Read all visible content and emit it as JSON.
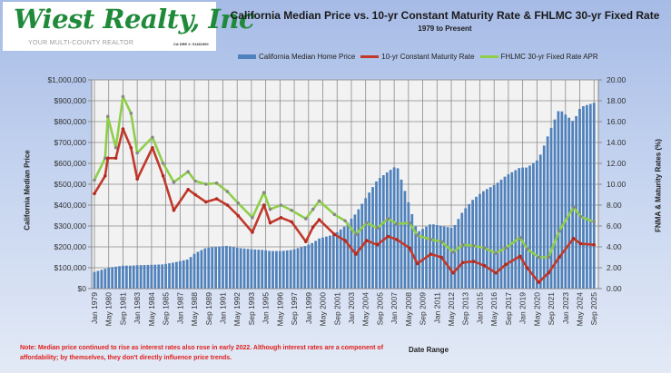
{
  "logo": {
    "name": "Wiest Realty, Inc",
    "tagline": "YOUR MULTI-COUNTY REALTOR",
    "license": "CA DRE #: 01181900"
  },
  "chart_data": {
    "type": "bar+line",
    "title": "California Median Price vs. 10-yr Constant Maturity Rate & FHLMC 30-yr Fixed Rate",
    "subtitle": "1979 to Present",
    "xlabel": "Date Range",
    "ylabel_left": "California Median Price",
    "ylabel_right": "FNMA & Maturity Rates (%)",
    "ylim_left": [
      0,
      1000000
    ],
    "ylim_right": [
      0,
      20
    ],
    "yticks_left": [
      "$0",
      "$100,000",
      "$200,000",
      "$300,000",
      "$400,000",
      "$500,000",
      "$600,000",
      "$700,000",
      "$800,000",
      "$900,000",
      "$1,000,000"
    ],
    "yticks_right": [
      "0.00",
      "2.00",
      "4.00",
      "6.00",
      "8.00",
      "10.00",
      "12.00",
      "14.00",
      "16.00",
      "18.00",
      "20.00"
    ],
    "xticks": [
      "Jan 1979",
      "May 1980",
      "Sep 1981",
      "Jan 1983",
      "May 1984",
      "Sep 1985",
      "Jan 1987",
      "May 1988",
      "Sep 1989",
      "Jan 1991",
      "May 1992",
      "Sep 1993",
      "Jan 1995",
      "May 1996",
      "Sep 1997",
      "Jan 1999",
      "May 2000",
      "Sep 2001",
      "Jan 2003",
      "May 2004",
      "Sep 2005",
      "Jan 2007",
      "May 2008",
      "Sep 2009",
      "Jan 2011",
      "May 2012",
      "Sep 2013",
      "Jan 2015",
      "May 2016",
      "Sep 2017",
      "Jan 2019",
      "May 2020",
      "Sep 2021",
      "Jan 2023",
      "May 2024",
      "Sep 2025"
    ],
    "grid": true,
    "legend_position": "top",
    "series": [
      {
        "name": "California Median Home Price",
        "type": "bar",
        "color": "#4f81bd"
      },
      {
        "name": "10-yr Constant Maturity Rate",
        "type": "line",
        "color": "#c0392b"
      },
      {
        "name": "FHLMC 30-yr Fixed Rate APR",
        "type": "line",
        "color": "#8fce4a"
      }
    ],
    "x": [
      "1979-01",
      "1980-01",
      "1980-04",
      "1981-01",
      "1981-09",
      "1982-06",
      "1983-01",
      "1984-06",
      "1985-06",
      "1986-06",
      "1987-10",
      "1988-06",
      "1989-06",
      "1990-06",
      "1991-06",
      "1992-06",
      "1993-10",
      "1994-11",
      "1995-06",
      "1996-06",
      "1997-06",
      "1998-10",
      "1999-06",
      "2000-01",
      "2001-06",
      "2002-06",
      "2003-06",
      "2004-06",
      "2005-06",
      "2006-06",
      "2007-04",
      "2008-06",
      "2009-03",
      "2010-06",
      "2011-06",
      "2012-07",
      "2013-06",
      "2014-06",
      "2015-06",
      "2016-07",
      "2017-06",
      "2018-10",
      "2019-06",
      "2020-07",
      "2021-06",
      "2022-06",
      "2023-10",
      "2024-06",
      "2025-09"
    ],
    "price": [
      80000,
      95000,
      100000,
      105000,
      110000,
      110000,
      112000,
      114000,
      116000,
      125000,
      140000,
      170000,
      195000,
      200000,
      205000,
      195000,
      188000,
      185000,
      180000,
      180000,
      185000,
      205000,
      220000,
      240000,
      260000,
      300000,
      360000,
      440000,
      520000,
      560000,
      590000,
      400000,
      270000,
      310000,
      300000,
      290000,
      370000,
      430000,
      470000,
      500000,
      540000,
      580000,
      580000,
      620000,
      740000,
      860000,
      800000,
      870000,
      890000
    ],
    "t10": [
      9.1,
      10.8,
      12.5,
      12.5,
      15.3,
      13.5,
      10.5,
      13.5,
      10.8,
      7.5,
      9.5,
      9.0,
      8.3,
      8.6,
      8.0,
      7.0,
      5.4,
      8.0,
      6.3,
      6.8,
      6.4,
      4.5,
      5.9,
      6.6,
      5.2,
      4.6,
      3.3,
      4.6,
      4.2,
      5.0,
      4.7,
      3.9,
      2.4,
      3.3,
      3.0,
      1.5,
      2.5,
      2.6,
      2.2,
      1.5,
      2.3,
      3.1,
      2.0,
      0.6,
      1.5,
      3.0,
      4.8,
      4.3,
      4.2
    ],
    "f30": [
      10.4,
      12.5,
      16.5,
      13.5,
      18.4,
      16.8,
      13.0,
      14.5,
      12.0,
      10.2,
      11.2,
      10.3,
      10.0,
      10.1,
      9.3,
      8.2,
      6.8,
      9.2,
      7.6,
      8.0,
      7.5,
      6.7,
      7.6,
      8.4,
      7.1,
      6.5,
      5.2,
      6.3,
      5.8,
      6.7,
      6.2,
      6.3,
      5.1,
      4.7,
      4.5,
      3.5,
      4.2,
      4.1,
      3.9,
      3.4,
      3.9,
      4.9,
      3.8,
      3.0,
      3.0,
      5.5,
      7.8,
      6.9,
      6.4
    ]
  },
  "note": "Note: Median price continued to rise as interest rates also rose in early 2022. Although interest rates are a component of affordability; by themselves, they don't directly influence price trends."
}
